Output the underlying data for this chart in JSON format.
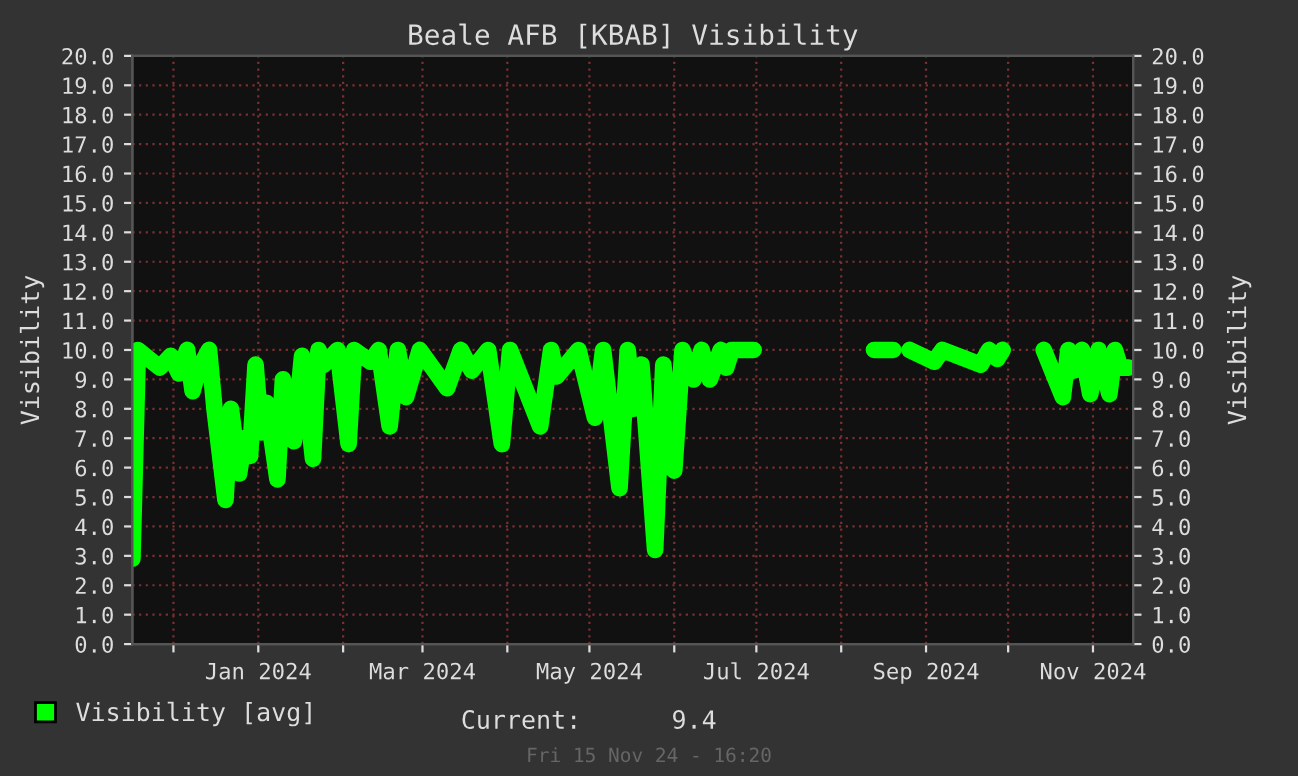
{
  "chart_data": {
    "type": "line",
    "title": "Beale AFB [KBAB] Visibility",
    "ylabel": "Visibility",
    "y2label": "Visibility",
    "xlim": [
      "2023-11-16",
      "2024-11-15T16:20"
    ],
    "xticks": [
      {
        "value": "2023-12-01",
        "label": null
      },
      {
        "value": "2024-01-01",
        "label": "Jan 2024"
      },
      {
        "value": "2024-02-01",
        "label": null
      },
      {
        "value": "2024-03-01",
        "label": "Mar 2024"
      },
      {
        "value": "2024-04-01",
        "label": null
      },
      {
        "value": "2024-05-01",
        "label": "May 2024"
      },
      {
        "value": "2024-06-01",
        "label": null
      },
      {
        "value": "2024-07-01",
        "label": "Jul 2024"
      },
      {
        "value": "2024-08-01",
        "label": null
      },
      {
        "value": "2024-09-01",
        "label": "Sep 2024"
      },
      {
        "value": "2024-10-01",
        "label": null
      },
      {
        "value": "2024-11-01",
        "label": "Nov 2024"
      }
    ],
    "ylim": [
      0,
      20
    ],
    "yticks": [
      {
        "value": 0,
        "label": "0.0"
      },
      {
        "value": 1,
        "label": "1.0"
      },
      {
        "value": 2,
        "label": "2.0"
      },
      {
        "value": 3,
        "label": "3.0"
      },
      {
        "value": 4,
        "label": "4.0"
      },
      {
        "value": 5,
        "label": "5.0"
      },
      {
        "value": 6,
        "label": "6.0"
      },
      {
        "value": 7,
        "label": "7.0"
      },
      {
        "value": 8,
        "label": "8.0"
      },
      {
        "value": 9,
        "label": "9.0"
      },
      {
        "value": 10,
        "label": "10.0"
      },
      {
        "value": 11,
        "label": "11.0"
      },
      {
        "value": 12,
        "label": "12.0"
      },
      {
        "value": 13,
        "label": "13.0"
      },
      {
        "value": 14,
        "label": "14.0"
      },
      {
        "value": 15,
        "label": "15.0"
      },
      {
        "value": 16,
        "label": "16.0"
      },
      {
        "value": 17,
        "label": "17.0"
      },
      {
        "value": 18,
        "label": "18.0"
      },
      {
        "value": 19,
        "label": "19.0"
      },
      {
        "value": 20,
        "label": "20.0"
      }
    ],
    "y2lim": [
      0,
      20
    ],
    "y2ticks": [
      {
        "value": 0,
        "label": "0.0"
      },
      {
        "value": 1,
        "label": "1.0"
      },
      {
        "value": 2,
        "label": "2.0"
      },
      {
        "value": 3,
        "label": "3.0"
      },
      {
        "value": 4,
        "label": "4.0"
      },
      {
        "value": 5,
        "label": "5.0"
      },
      {
        "value": 6,
        "label": "6.0"
      },
      {
        "value": 7,
        "label": "7.0"
      },
      {
        "value": 8,
        "label": "8.0"
      },
      {
        "value": 9,
        "label": "9.0"
      },
      {
        "value": 10,
        "label": "10.0"
      },
      {
        "value": 11,
        "label": "11.0"
      },
      {
        "value": 12,
        "label": "12.0"
      },
      {
        "value": 13,
        "label": "13.0"
      },
      {
        "value": 14,
        "label": "14.0"
      },
      {
        "value": 15,
        "label": "15.0"
      },
      {
        "value": 16,
        "label": "16.0"
      },
      {
        "value": 17,
        "label": "17.0"
      },
      {
        "value": 18,
        "label": "18.0"
      },
      {
        "value": 19,
        "label": "19.0"
      },
      {
        "value": 20,
        "label": "20.0"
      }
    ],
    "grid": true,
    "legend": "bottom left",
    "line_style": "solid",
    "marker": "none",
    "annotations": [
      "Current:      9.4",
      "Fri 15 Nov 24 - 16:20"
    ],
    "x": [
      "2023-11-16",
      "2023-11-18",
      "2023-11-26",
      "2023-11-30",
      "2023-12-03",
      "2023-12-06",
      "2023-12-08",
      "2023-12-10",
      "2023-12-14",
      "2023-12-16",
      "2023-12-20",
      "2023-12-22",
      "2023-12-25",
      "2023-12-27",
      "2023-12-29",
      "2023-12-31",
      "2024-01-02",
      "2024-01-04",
      "2024-01-08",
      "2024-01-10",
      "2024-01-14",
      "2024-01-17",
      "2024-01-21",
      "2024-01-23",
      "2024-01-25",
      "2024-01-30",
      "2024-02-03",
      "2024-02-05",
      "2024-02-11",
      "2024-02-14",
      "2024-02-18",
      "2024-02-21",
      "2024-02-24",
      "2024-02-29",
      "2024-03-10",
      "2024-03-15",
      "2024-03-19",
      "2024-03-25",
      "2024-03-30",
      "2024-04-02",
      "2024-04-13",
      "2024-04-17",
      "2024-04-19",
      "2024-04-27",
      "2024-05-03",
      "2024-05-06",
      "2024-05-12",
      "2024-05-15",
      "2024-05-17",
      "2024-05-20",
      "2024-05-25",
      "2024-05-28",
      "2024-06-01",
      "2024-06-04",
      "2024-06-08",
      "2024-06-11",
      "2024-06-14",
      "2024-06-18",
      "2024-06-20",
      "2024-06-22",
      "2024-06-30",
      "2024-07-15",
      "2024-08-13",
      "2024-08-20",
      "2024-08-22",
      "2024-08-26",
      "2024-09-04",
      "2024-09-07",
      "2024-09-21",
      "2024-09-24",
      "2024-09-27",
      "2024-09-29",
      "2024-10-10",
      "2024-10-14",
      "2024-10-21",
      "2024-10-23",
      "2024-10-25",
      "2024-10-28",
      "2024-10-31",
      "2024-11-03",
      "2024-11-07",
      "2024-11-09",
      "2024-11-11",
      "2024-11-14"
    ],
    "series": [
      {
        "name": "Visibility [avg]",
        "color": "#00ff00",
        "values": [
          2.9,
          10.0,
          9.4,
          9.8,
          9.2,
          10.0,
          8.6,
          9.3,
          10.0,
          8.0,
          4.9,
          8.0,
          5.8,
          7.0,
          6.4,
          9.5,
          7.2,
          8.2,
          5.6,
          9.0,
          6.9,
          9.8,
          6.3,
          10.0,
          9.5,
          10.0,
          6.8,
          10.0,
          9.6,
          10.0,
          7.4,
          10.0,
          8.4,
          10.0,
          8.7,
          10.0,
          9.3,
          10.0,
          6.8,
          10.0,
          7.4,
          10.0,
          9.1,
          10.0,
          7.7,
          10.0,
          5.3,
          10.0,
          8.0,
          9.5,
          3.2,
          9.5,
          5.9,
          10.0,
          9.0,
          10.0,
          9.0,
          10.0,
          9.4,
          10.0,
          10.0,
          null,
          10.0,
          10.0,
          null,
          10.0,
          9.6,
          10.0,
          9.5,
          10.0,
          9.7,
          10.0,
          null,
          10.0,
          8.4,
          10.0,
          9.3,
          10.0,
          8.5,
          10.0,
          8.5,
          10.0,
          9.4,
          9.4
        ]
      }
    ]
  }
}
